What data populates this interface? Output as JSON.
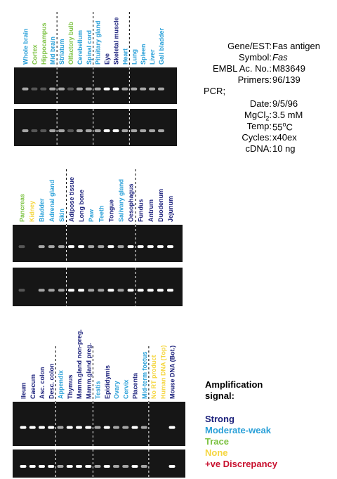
{
  "panels": [
    {
      "lanes": [
        {
          "label": "Whole brain",
          "color": "#2aa0d8"
        },
        {
          "label": "Cortex",
          "color": "#7cc242"
        },
        {
          "label": "Hippocampus",
          "color": "#7cc242"
        },
        {
          "label": "Mid brain",
          "color": "#2aa0d8"
        },
        {
          "label": "Striatum",
          "color": "#2aa0d8"
        },
        {
          "label": "Olfactory bulb",
          "color": "#7cc242"
        },
        {
          "label": "Cerebellum",
          "color": "#2aa0d8"
        },
        {
          "label": "Spinal cord",
          "color": "#2aa0d8"
        },
        {
          "label": "Pituitary gland",
          "color": "#2aa0d8"
        },
        {
          "label": "Eye",
          "color": "#1a1f7a"
        },
        {
          "label": "Skeletal muscle",
          "color": "#1a1f7a"
        },
        {
          "label": "Heart",
          "color": "#2aa0d8"
        },
        {
          "label": "Lung",
          "color": "#2aa0d8"
        },
        {
          "label": "Spleen",
          "color": "#2aa0d8"
        },
        {
          "label": "Liver",
          "color": "#2aa0d8"
        },
        {
          "label": "Gall bladder",
          "color": "#2aa0d8"
        }
      ]
    },
    {
      "lanes": [
        {
          "label": "Pancreas",
          "color": "#7cc242"
        },
        {
          "label": "Kidney",
          "color": "#f5d640"
        },
        {
          "label": "Bladder",
          "color": "#2aa0d8"
        },
        {
          "label": "Adrenal gland",
          "color": "#2aa0d8"
        },
        {
          "label": "Skin",
          "color": "#2aa0d8"
        },
        {
          "label": "Adipose tissue",
          "color": "#1a1f7a"
        },
        {
          "label": "Long bone",
          "color": "#1a1f7a"
        },
        {
          "label": "Paw",
          "color": "#2aa0d8"
        },
        {
          "label": "Teeth",
          "color": "#2aa0d8"
        },
        {
          "label": "Tongue",
          "color": "#1a1f7a"
        },
        {
          "label": "Salivary gland",
          "color": "#2aa0d8"
        },
        {
          "label": "Oesophagus",
          "color": "#1a1f7a"
        },
        {
          "label": "Fundus",
          "color": "#1a1f7a"
        },
        {
          "label": "Antrum",
          "color": "#1a1f7a"
        },
        {
          "label": "Duodenum",
          "color": "#1a1f7a"
        },
        {
          "label": "Jejunum",
          "color": "#1a1f7a"
        }
      ]
    },
    {
      "lanes": [
        {
          "label": "Ileum",
          "color": "#1a1f7a"
        },
        {
          "label": "Caecum",
          "color": "#1a1f7a"
        },
        {
          "label": "Asc. colon",
          "color": "#1a1f7a"
        },
        {
          "label": "Desc. colon",
          "color": "#1a1f7a"
        },
        {
          "label": "Appendix",
          "color": "#2aa0d8"
        },
        {
          "label": "Thymus",
          "color": "#1a1f7a"
        },
        {
          "label": "Mamm.gland non-preg.",
          "color": "#1a1f7a"
        },
        {
          "label": "Mamm.gland preg.",
          "color": "#1a1f7a"
        },
        {
          "label": "Testis",
          "color": "#2aa0d8"
        },
        {
          "label": "Epididymis",
          "color": "#1a1f7a"
        },
        {
          "label": "Ovary",
          "color": "#2aa0d8"
        },
        {
          "label": "Cervix",
          "color": "#2aa0d8"
        },
        {
          "label": "Placenta",
          "color": "#1a1f7a"
        },
        {
          "label": "Mid-term foetus",
          "color": "#2aa0d8"
        },
        {
          "label": "No RT product",
          "color": "#f5d640"
        },
        {
          "label": "Human DNA (Top)",
          "color": "#f5d640"
        },
        {
          "label": "Mouse DNA (Bot.)",
          "color": "#1a1f7a"
        }
      ]
    }
  ],
  "info": {
    "gene": {
      "key": "Gene/EST:",
      "value": "Fas antigen"
    },
    "symbol": {
      "key": "Symbol:",
      "value": "Fas"
    },
    "embl": {
      "key": "EMBL Ac. No.:",
      "value": "M83649"
    },
    "primers": {
      "key": "Primers:",
      "value": "96/139"
    },
    "pcr": "PCR;",
    "date": {
      "key": "Date:",
      "value": "9/5/96"
    },
    "mgcl": {
      "key": "MgCl",
      "sub": "2",
      "colon": ":",
      "value": "3.5 mM"
    },
    "temp": {
      "key": "Temp:",
      "value": "55",
      "sup": "o",
      "after": "C"
    },
    "cycles": {
      "key": "Cycles:",
      "value": "x40ex"
    },
    "cdna": {
      "key": "cDNA:",
      "value": "10 ng"
    }
  },
  "legend": {
    "title_1": "Amplification",
    "title_2": "signal:",
    "entries": [
      {
        "name": "Strong",
        "color": "#1a1f7a"
      },
      {
        "name": "Moderate-weak",
        "color": "#2aa0d8"
      },
      {
        "name": "Trace",
        "color": "#7cc242"
      },
      {
        "name": "None",
        "color": "#f5d640"
      },
      {
        "name": "+ve Discrepancy",
        "color": "#c8102e"
      }
    ]
  }
}
